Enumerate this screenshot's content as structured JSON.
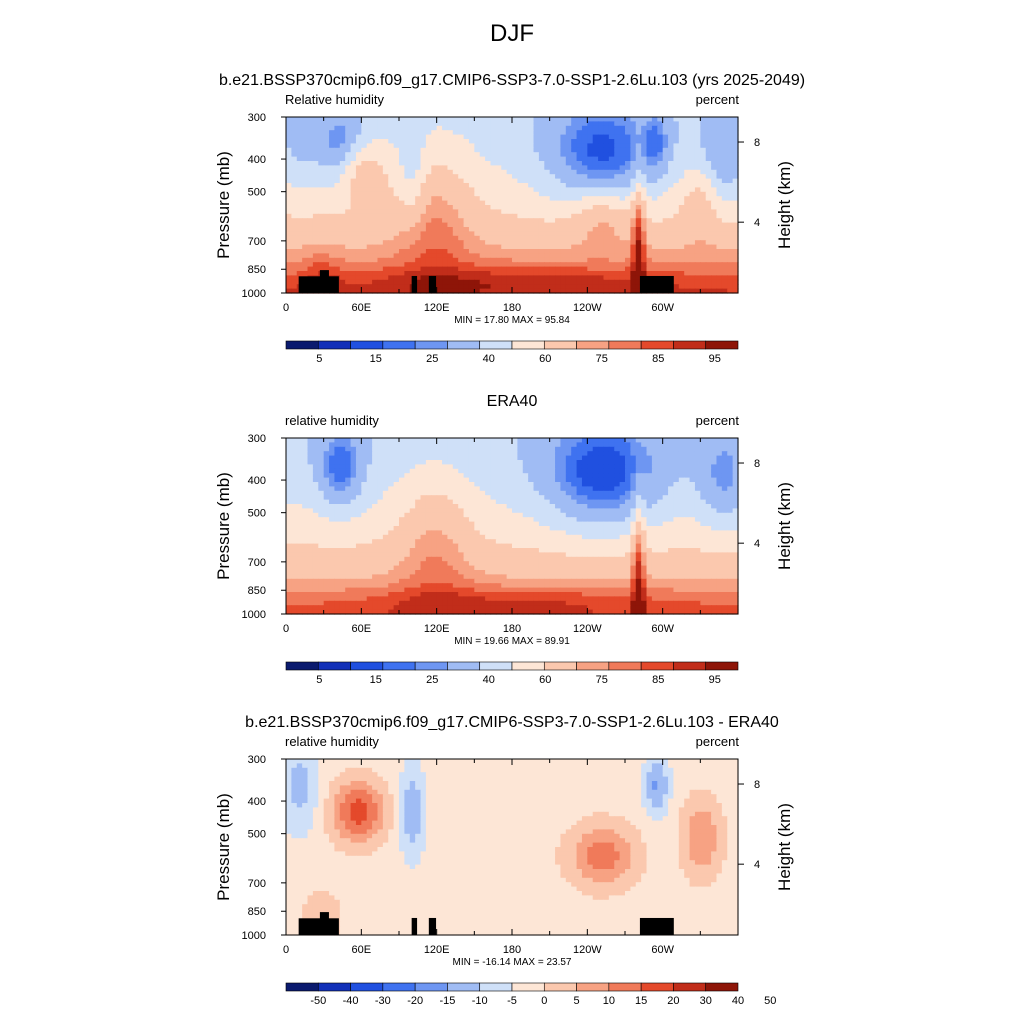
{
  "figure": {
    "title": "DJF"
  },
  "chart_data": [
    {
      "type": "heatmap",
      "subplot_title": "b.e21.BSSP370cmip6.f09_g17.CMIP6-SSP3-7.0-SSP1-2.6Lu.103 (yrs 2025-2049)",
      "left_string": "Relative humidity",
      "right_string": "percent",
      "ylabel": "Pressure (mb)",
      "y2label": "Height (km)",
      "x_ticks": [
        "0",
        "60E",
        "120E",
        "180",
        "120W",
        "60W"
      ],
      "y_ticks": [
        "300",
        "400",
        "500",
        "700",
        "850",
        "1000"
      ],
      "y2_ticks": [
        "8",
        "4"
      ],
      "minmax_text": "MIN = 17.80  MAX = 95.84",
      "min": 17.8,
      "max": 95.84,
      "colorbar_labels": [
        "5",
        "15",
        "25",
        "40",
        "60",
        "75",
        "85",
        "95"
      ],
      "field": "model",
      "terrain": true
    },
    {
      "type": "heatmap",
      "subplot_title": "ERA40",
      "left_string": "relative humidity",
      "right_string": "percent",
      "ylabel": "Pressure (mb)",
      "y2label": "Height (km)",
      "x_ticks": [
        "0",
        "60E",
        "120E",
        "180",
        "120W",
        "60W"
      ],
      "y_ticks": [
        "300",
        "400",
        "500",
        "700",
        "850",
        "1000"
      ],
      "y2_ticks": [
        "8",
        "4"
      ],
      "minmax_text": "MIN = 19.66  MAX = 89.91",
      "min": 19.66,
      "max": 89.91,
      "colorbar_labels": [
        "5",
        "15",
        "25",
        "40",
        "60",
        "75",
        "85",
        "95"
      ],
      "field": "obs",
      "terrain": false
    },
    {
      "type": "heatmap",
      "subplot_title": "b.e21.BSSP370cmip6.f09_g17.CMIP6-SSP3-7.0-SSP1-2.6Lu.103 - ERA40",
      "left_string": "relative humidity",
      "right_string": "percent",
      "ylabel": "Pressure (mb)",
      "y2label": "Height (km)",
      "x_ticks": [
        "0",
        "60E",
        "120E",
        "180",
        "120W",
        "60W"
      ],
      "y_ticks": [
        "300",
        "400",
        "500",
        "700",
        "850",
        "1000"
      ],
      "y2_ticks": [
        "8",
        "4"
      ],
      "minmax_text": "MIN = -16.14  MAX = 23.57",
      "min": -16.14,
      "max": 23.57,
      "colorbar_labels": [
        "-50",
        "-40",
        "-30",
        "-20",
        "-15",
        "-10",
        "-5",
        "0",
        "5",
        "10",
        "15",
        "20",
        "30",
        "40",
        "50"
      ],
      "field": "diff",
      "terrain": true
    }
  ],
  "colors": {
    "palette": [
      "#0a1a6e",
      "#1230b8",
      "#2050e0",
      "#3f72f0",
      "#6e96f2",
      "#a0bcf4",
      "#cfe0f8",
      "#fde6d6",
      "#fbc8ae",
      "#f7a283",
      "#f07a5a",
      "#e4492b",
      "#c12d1a",
      "#8e1508"
    ],
    "terrain": "#000000"
  }
}
